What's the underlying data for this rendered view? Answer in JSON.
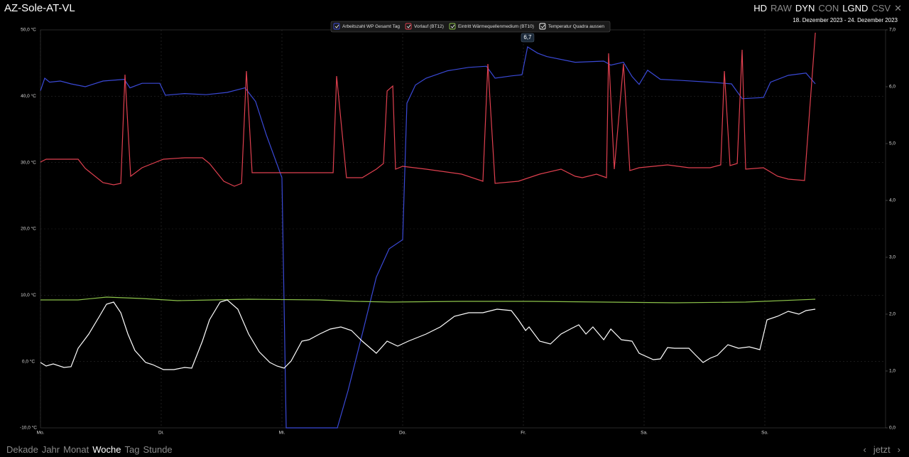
{
  "header": {
    "title": "AZ-Sole-AT-VL",
    "modes": [
      {
        "label": "HD",
        "active": true
      },
      {
        "label": "RAW",
        "active": false
      },
      {
        "label": "DYN",
        "active": true
      },
      {
        "label": "CON",
        "active": false
      },
      {
        "label": "LGND",
        "active": true
      },
      {
        "label": "CSV",
        "active": false
      }
    ],
    "date_range": "18. Dezember 2023 - 24. Dezember 2023"
  },
  "chart_data": {
    "type": "line",
    "xlim": [
      0,
      7
    ],
    "xticks": [
      {
        "value": 0,
        "label": "Mo."
      },
      {
        "value": 1,
        "label": "Di."
      },
      {
        "value": 2,
        "label": "Mi."
      },
      {
        "value": 3,
        "label": "Do."
      },
      {
        "value": 4,
        "label": "Fr."
      },
      {
        "value": 5,
        "label": "Sa."
      },
      {
        "value": 6,
        "label": "So."
      }
    ],
    "ylim": [
      -10,
      50
    ],
    "yticks": [
      {
        "value": -10,
        "label": "-10,0 °C"
      },
      {
        "value": 0,
        "label": "0,0 °C"
      },
      {
        "value": 10,
        "label": "10,0 °C"
      },
      {
        "value": 20,
        "label": "20,0 °C"
      },
      {
        "value": 30,
        "label": "30,0 °C"
      },
      {
        "value": 40,
        "label": "40,0 °C"
      },
      {
        "value": 50,
        "label": "50,0 °C"
      }
    ],
    "y2lim": [
      0,
      7
    ],
    "y2ticks": [
      {
        "value": 0,
        "label": "0,0"
      },
      {
        "value": 1,
        "label": "1,0"
      },
      {
        "value": 2,
        "label": "2,0"
      },
      {
        "value": 3,
        "label": "3,0"
      },
      {
        "value": 4,
        "label": "4,0"
      },
      {
        "value": 5,
        "label": "5,0"
      },
      {
        "value": 6,
        "label": "6,0"
      },
      {
        "value": 7,
        "label": "7,0"
      }
    ],
    "grid": true,
    "legend": "top",
    "series": [
      {
        "name": "Arbeitszahl WP Gesamt Tag",
        "color": "#3a49d6",
        "axis": "y2",
        "x": [
          0,
          0.035,
          0.076,
          0.165,
          0.253,
          0.371,
          0.518,
          0.694,
          0.741,
          0.841,
          0.988,
          1.035,
          1.194,
          1.371,
          1.547,
          1.694,
          1.782,
          1.871,
          2.0,
          2.035,
          2.459,
          2.547,
          2.665,
          2.782,
          2.888,
          3.0,
          3.035,
          3.106,
          3.194,
          3.371,
          3.547,
          3.694,
          3.765,
          3.9,
          3.988,
          4.035,
          4.118,
          4.194,
          4.429,
          4.665,
          4.724,
          4.829,
          4.9,
          4.959,
          5.029,
          5.135,
          5.312,
          5.547,
          5.665,
          5.724,
          5.812,
          5.988,
          6.047,
          6.194,
          6.341,
          6.418
        ],
        "values": [
          5.93,
          6.15,
          6.08,
          6.1,
          6.05,
          6.0,
          6.1,
          6.13,
          5.98,
          6.06,
          6.06,
          5.85,
          5.88,
          5.86,
          5.9,
          5.98,
          5.74,
          5.15,
          4.4,
          0,
          0,
          0.65,
          1.65,
          2.65,
          3.15,
          3.31,
          5.71,
          6.03,
          6.15,
          6.28,
          6.34,
          6.36,
          6.15,
          6.19,
          6.21,
          6.7,
          6.59,
          6.53,
          6.43,
          6.45,
          6.38,
          6.43,
          6.18,
          6.04,
          6.29,
          6.13,
          6.11,
          6.08,
          6.06,
          6.05,
          5.79,
          5.81,
          6.08,
          6.2,
          6.24,
          6.05
        ]
      },
      {
        "name": "Vorlauf (BT12)",
        "color": "#e0404f",
        "x": [
          0,
          0.047,
          0.312,
          0.371,
          0.518,
          0.606,
          0.665,
          0.7,
          0.747,
          0.841,
          1.018,
          1.194,
          1.341,
          1.4,
          1.518,
          1.606,
          1.665,
          1.706,
          1.753,
          2.0,
          2.424,
          2.453,
          2.535,
          2.665,
          2.782,
          2.841,
          2.871,
          2.918,
          2.941,
          3.0,
          3.194,
          3.488,
          3.665,
          3.706,
          3.765,
          3.959,
          4.135,
          4.312,
          4.429,
          4.488,
          4.606,
          4.688,
          4.706,
          4.753,
          4.829,
          4.882,
          4.959,
          5.194,
          5.371,
          5.547,
          5.635,
          5.665,
          5.712,
          5.771,
          5.812,
          5.841,
          5.988,
          6.106,
          6.194,
          6.329,
          6.418
        ],
        "values": [
          30.07,
          30.5,
          30.5,
          29.11,
          26.96,
          26.64,
          26.86,
          43.25,
          27.93,
          29.21,
          30.5,
          30.71,
          30.71,
          29.86,
          27.18,
          26.43,
          26.86,
          43.79,
          28.46,
          28.46,
          28.46,
          43.04,
          27.71,
          27.71,
          29.0,
          29.86,
          40.79,
          41.54,
          29.0,
          29.43,
          29.0,
          28.25,
          27.18,
          44.86,
          26.86,
          27.18,
          28.25,
          29.0,
          27.93,
          27.71,
          28.25,
          27.71,
          46.46,
          29.0,
          44.86,
          28.79,
          29.21,
          29.64,
          29.21,
          29.21,
          29.64,
          43.79,
          29.54,
          29.86,
          47.0,
          29.0,
          29.21,
          27.93,
          27.5,
          27.29,
          49.57
        ]
      },
      {
        "name": "Eintritt Wärmequellenmedium (BT10)",
        "color": "#8cc34a",
        "x": [
          0,
          0.312,
          0.547,
          0.841,
          1.135,
          1.429,
          1.724,
          2.312,
          2.606,
          2.9,
          3.488,
          4.076,
          4.665,
          5.253,
          5.841,
          6.418
        ],
        "values": [
          9.29,
          9.29,
          9.71,
          9.5,
          9.18,
          9.29,
          9.39,
          9.29,
          9.07,
          8.96,
          9.07,
          9.07,
          8.96,
          8.86,
          8.96,
          9.39
        ]
      },
      {
        "name": "Temperatur Quadra aussen",
        "color": "#ffffff",
        "x": [
          0,
          0.047,
          0.106,
          0.194,
          0.253,
          0.312,
          0.4,
          0.488,
          0.547,
          0.606,
          0.665,
          0.724,
          0.782,
          0.871,
          0.929,
          1.018,
          1.106,
          1.194,
          1.253,
          1.341,
          1.4,
          1.488,
          1.547,
          1.635,
          1.724,
          1.812,
          1.9,
          1.959,
          2.018,
          2.076,
          2.165,
          2.224,
          2.312,
          2.4,
          2.488,
          2.576,
          2.665,
          2.782,
          2.871,
          2.959,
          3.047,
          3.194,
          3.312,
          3.429,
          3.547,
          3.665,
          3.782,
          3.9,
          3.959,
          4.018,
          4.047,
          4.135,
          4.224,
          4.312,
          4.4,
          4.459,
          4.518,
          4.576,
          4.665,
          4.724,
          4.812,
          4.9,
          4.959,
          5.076,
          5.135,
          5.194,
          5.253,
          5.371,
          5.429,
          5.488,
          5.547,
          5.606,
          5.694,
          5.782,
          5.871,
          5.959,
          6.018,
          6.106,
          6.194,
          6.282,
          6.341,
          6.418
        ],
        "values": [
          -0.14,
          -0.68,
          -0.36,
          -0.89,
          -0.79,
          2.0,
          4.14,
          6.82,
          8.64,
          8.96,
          7.36,
          4.14,
          1.68,
          -0.14,
          -0.46,
          -1.21,
          -1.21,
          -0.89,
          -1.0,
          3.07,
          6.29,
          8.96,
          9.29,
          7.89,
          4.14,
          1.46,
          -0.14,
          -0.68,
          -1.0,
          0.07,
          3.07,
          3.29,
          4.14,
          4.89,
          5.21,
          4.68,
          3.07,
          1.25,
          3.07,
          2.32,
          3.07,
          4.14,
          5.21,
          6.82,
          7.36,
          7.36,
          7.89,
          7.68,
          6.29,
          4.68,
          5.21,
          3.07,
          2.64,
          4.14,
          5.0,
          5.54,
          4.14,
          5.21,
          3.29,
          4.89,
          3.29,
          3.07,
          1.25,
          0.29,
          0.39,
          2.11,
          2.0,
          2.0,
          0.93,
          -0.14,
          0.5,
          0.93,
          2.54,
          2.0,
          2.21,
          1.79,
          6.29,
          6.82,
          7.57,
          7.14,
          7.68,
          7.89
        ]
      }
    ],
    "annotation": {
      "x": 4.035,
      "value": 6.7,
      "label": "6,7"
    }
  },
  "footer": {
    "ranges": [
      {
        "label": "Dekade",
        "active": false
      },
      {
        "label": "Jahr",
        "active": false
      },
      {
        "label": "Monat",
        "active": false
      },
      {
        "label": "Woche",
        "active": true
      },
      {
        "label": "Tag",
        "active": false
      },
      {
        "label": "Stunde",
        "active": false
      }
    ],
    "now": "jetzt"
  }
}
